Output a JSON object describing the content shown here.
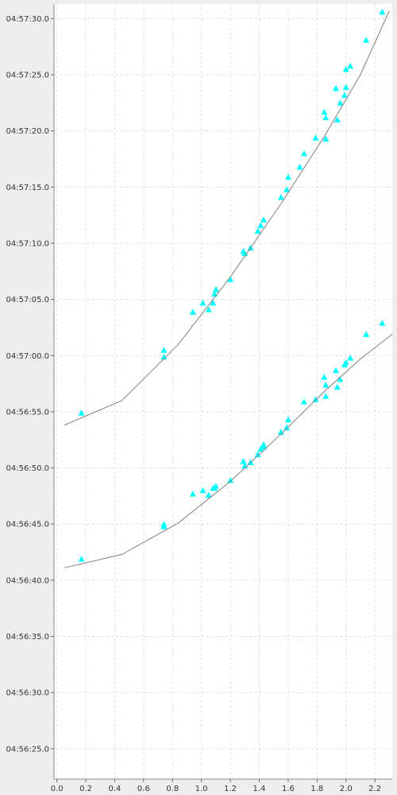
{
  "chart_data": {
    "type": "scatter",
    "title": "",
    "xlabel": "",
    "ylabel": "",
    "grid": true,
    "legend": "none",
    "xlim": [
      -0.02,
      2.32
    ],
    "ylim": [
      "04:56:22.3",
      "04:57:31.3"
    ],
    "x_ticks": [
      "0.0",
      "0.2",
      "0.4",
      "0.6",
      "0.8",
      "1.0",
      "1.2",
      "1.4",
      "1.6",
      "1.8",
      "2.0",
      "2.2"
    ],
    "y_ticks": [
      "04:56:25.0",
      "04:56:30.0",
      "04:56:35.0",
      "04:56:40.0",
      "04:56:45.0",
      "04:56:50.0",
      "04:56:55.0",
      "04:57:00.0",
      "04:57:05.0",
      "04:57:10.0",
      "04:57:15.0",
      "04:57:20.0",
      "04:57:25.0",
      "04:57:30.0"
    ],
    "colors": {
      "points": "#00ffff",
      "line": "#808080",
      "grid": "#dddddd",
      "plot_bg": "#ffffff",
      "page_bg": "#eeeeee"
    },
    "series": [
      {
        "marker": "triangle",
        "points": [
          [
            0.17,
            "04:56:54.9"
          ],
          [
            0.74,
            "04:57:00.5"
          ],
          [
            0.74,
            "04:56:59.9"
          ],
          [
            0.94,
            "04:57:03.9"
          ],
          [
            1.01,
            "04:57:04.7"
          ],
          [
            1.05,
            "04:57:04.1"
          ],
          [
            1.08,
            "04:57:04.7"
          ],
          [
            1.09,
            "04:57:05.5"
          ],
          [
            1.1,
            "04:57:05.9"
          ],
          [
            1.2,
            "04:57:06.8"
          ],
          [
            1.29,
            "04:57:09.3"
          ],
          [
            1.3,
            "04:57:09.1"
          ],
          [
            1.34,
            "04:57:09.6"
          ],
          [
            1.39,
            "04:57:11.1"
          ],
          [
            1.41,
            "04:57:11.6"
          ],
          [
            1.43,
            "04:57:12.1"
          ],
          [
            1.55,
            "04:57:14.1"
          ],
          [
            1.59,
            "04:57:14.8"
          ],
          [
            1.6,
            "04:57:15.9"
          ],
          [
            1.68,
            "04:57:16.8"
          ],
          [
            1.71,
            "04:57:18.0"
          ],
          [
            1.79,
            "04:57:19.4"
          ],
          [
            1.85,
            "04:57:21.7"
          ],
          [
            1.86,
            "04:57:21.2"
          ],
          [
            1.86,
            "04:57:19.3"
          ],
          [
            1.93,
            "04:57:23.8"
          ],
          [
            1.94,
            "04:57:21.0"
          ],
          [
            1.96,
            "04:57:22.5"
          ],
          [
            1.99,
            "04:57:23.2"
          ],
          [
            2.0,
            "04:57:23.9"
          ],
          [
            2.0,
            "04:57:25.5"
          ],
          [
            2.03,
            "04:57:25.8"
          ],
          [
            2.14,
            "04:57:28.1"
          ],
          [
            2.25,
            "04:57:30.6"
          ]
        ]
      },
      {
        "marker": "line",
        "points": [
          [
            0.05,
            "04:56:53.8"
          ],
          [
            0.45,
            "04:56:56.0"
          ],
          [
            0.84,
            "04:57:01.0"
          ],
          [
            1.2,
            "04:57:07.0"
          ],
          [
            1.55,
            "04:57:13.5"
          ],
          [
            1.85,
            "04:57:19.5"
          ],
          [
            2.1,
            "04:57:25.0"
          ],
          [
            2.3,
            "04:57:30.7"
          ]
        ]
      },
      {
        "marker": "triangle",
        "points": [
          [
            0.17,
            "04:56:41.9"
          ],
          [
            0.74,
            "04:56:45.0"
          ],
          [
            0.74,
            "04:56:44.8"
          ],
          [
            0.94,
            "04:56:47.7"
          ],
          [
            1.01,
            "04:56:48.0"
          ],
          [
            1.05,
            "04:56:47.6"
          ],
          [
            1.08,
            "04:56:48.2"
          ],
          [
            1.09,
            "04:56:48.2"
          ],
          [
            1.1,
            "04:56:48.4"
          ],
          [
            1.2,
            "04:56:48.9"
          ],
          [
            1.29,
            "04:56:50.6"
          ],
          [
            1.3,
            "04:56:50.2"
          ],
          [
            1.34,
            "04:56:50.5"
          ],
          [
            1.39,
            "04:56:51.2"
          ],
          [
            1.41,
            "04:56:51.7"
          ],
          [
            1.43,
            "04:56:52.1"
          ],
          [
            1.43,
            "04:56:51.9"
          ],
          [
            1.55,
            "04:56:53.2"
          ],
          [
            1.59,
            "04:56:53.6"
          ],
          [
            1.6,
            "04:56:54.3"
          ],
          [
            1.71,
            "04:56:55.9"
          ],
          [
            1.79,
            "04:56:56.1"
          ],
          [
            1.85,
            "04:56:58.1"
          ],
          [
            1.86,
            "04:56:57.4"
          ],
          [
            1.86,
            "04:56:56.4"
          ],
          [
            1.93,
            "04:56:58.7"
          ],
          [
            1.94,
            "04:56:57.2"
          ],
          [
            1.96,
            "04:56:57.9"
          ],
          [
            1.99,
            "04:56:59.2"
          ],
          [
            2.0,
            "04:56:59.4"
          ],
          [
            2.03,
            "04:56:59.8"
          ],
          [
            2.14,
            "04:57:01.9"
          ],
          [
            2.25,
            "04:57:02.9"
          ]
        ]
      },
      {
        "marker": "line",
        "points": [
          [
            0.05,
            "04:56:41.1"
          ],
          [
            0.45,
            "04:56:42.3"
          ],
          [
            0.84,
            "04:56:45.1"
          ],
          [
            1.2,
            "04:56:48.8"
          ],
          [
            1.55,
            "04:56:53.0"
          ],
          [
            1.85,
            "04:56:56.8"
          ],
          [
            2.1,
            "04:56:59.7"
          ],
          [
            2.32,
            "04:57:01.9"
          ]
        ]
      }
    ]
  }
}
